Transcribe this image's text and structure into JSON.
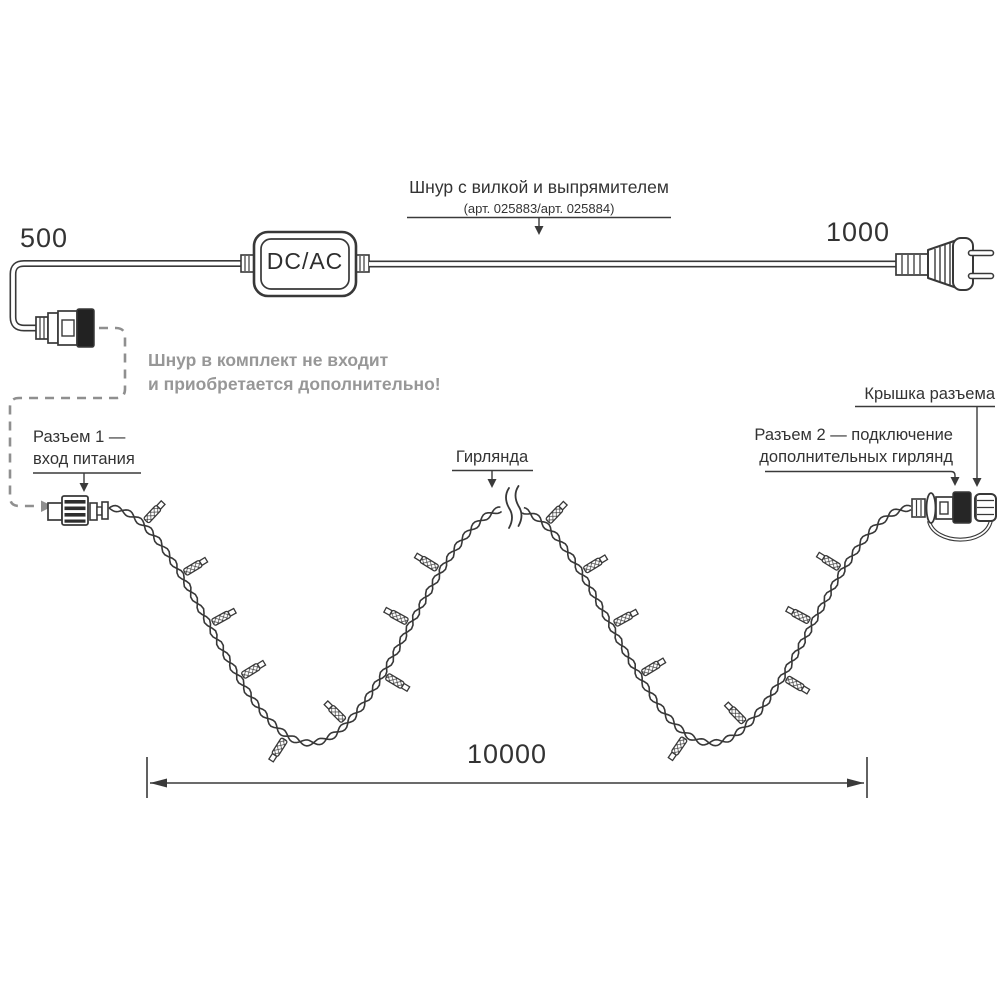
{
  "labels": {
    "cord_label_line1": "Шнур с вилкой и выпрямителем",
    "cord_label_line2": "(арт. 025883/арт. 025884)",
    "note_line1": "Шнур в комплект не входит",
    "note_line2": "и приобретается дополнительно!",
    "connector1_line1": "Разъем 1 —",
    "connector1_line2": "вход питания",
    "garland": "Гирлянда",
    "cap": "Крышка разъема",
    "connector2_line1": "Разъем 2 — подключение",
    "connector2_line2": "дополнительных гирлянд",
    "converter": "DC/AC"
  },
  "dimensions": {
    "cord_left": "500",
    "cord_right": "1000",
    "garland_length": "10000"
  },
  "colors": {
    "line": "#383838",
    "dark_fill": "#222222",
    "dashed_gray": "#8f8f8f",
    "note_gray": "#979797",
    "background": "#ffffff"
  }
}
